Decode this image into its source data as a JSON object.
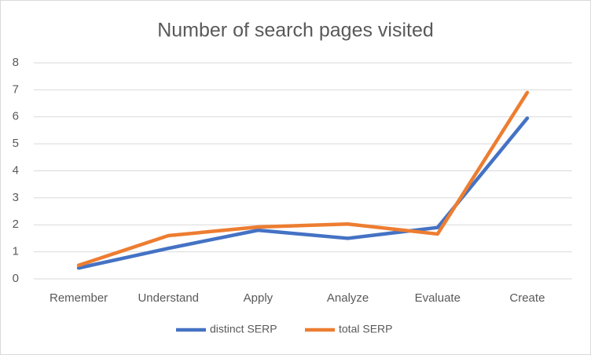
{
  "chart_data": {
    "type": "line",
    "title": "Number of search pages visited",
    "categories": [
      "Remember",
      "Understand",
      "Apply",
      "Analyze",
      "Evaluate",
      "Create"
    ],
    "series": [
      {
        "name": "distinct SERP",
        "color": "#4472c4",
        "values": [
          0.4,
          1.13,
          1.8,
          1.5,
          1.9,
          5.95
        ]
      },
      {
        "name": "total SERP",
        "color": "#ed7d31",
        "values": [
          0.5,
          1.6,
          1.92,
          2.03,
          1.66,
          6.9
        ]
      }
    ],
    "ylim": [
      0,
      8
    ],
    "yticks": [
      0,
      1,
      2,
      3,
      4,
      5,
      6,
      7,
      8
    ],
    "grid": true,
    "legend": "bottom"
  }
}
